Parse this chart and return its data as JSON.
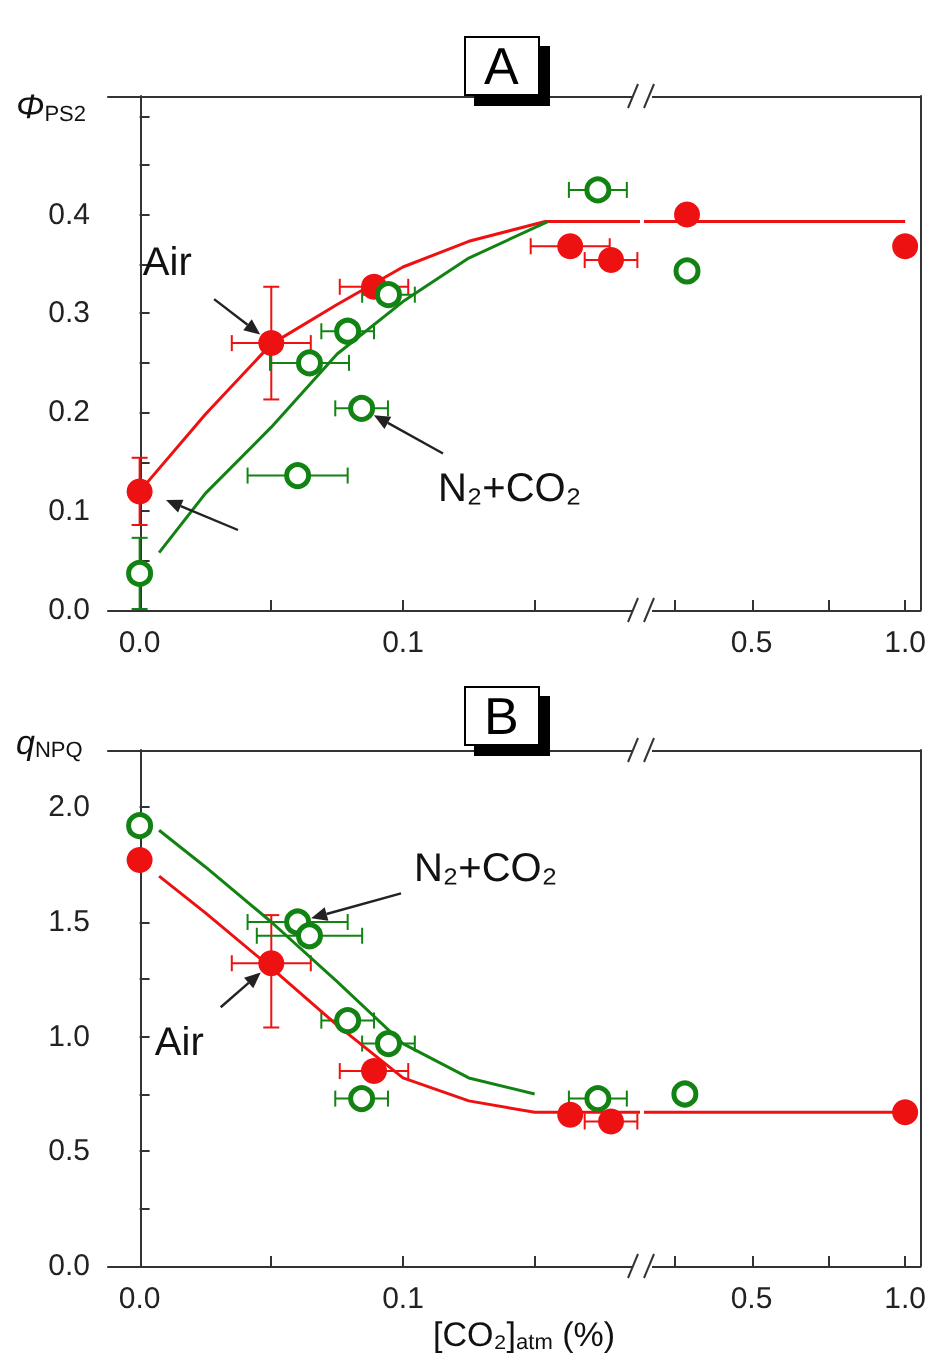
{
  "chart_data": [
    {
      "type": "scatter",
      "title": "A",
      "ylabel": "Φ$_{PS2}$",
      "xlim": [
        -0.012,
        0.19
      ],
      "xticks": [
        {
          "value": 0,
          "label": "0.0"
        },
        {
          "value": 0.05,
          "label": null
        },
        {
          "value": 0.1,
          "label": "0.1"
        },
        {
          "value": 0.15,
          "label": null
        }
      ],
      "ylim": [
        0,
        0.52
      ],
      "yticks": [
        {
          "value": 0,
          "label": "0.0"
        },
        {
          "value": 0.05,
          "label": null
        },
        {
          "value": 0.1,
          "label": "0.1"
        },
        {
          "value": 0.15,
          "label": null
        },
        {
          "value": 0.2,
          "label": "0.2"
        },
        {
          "value": 0.25,
          "label": null
        },
        {
          "value": 0.3,
          "label": "0.3"
        },
        {
          "value": 0.35,
          "label": null
        },
        {
          "value": 0.4,
          "label": "0.4"
        },
        {
          "value": 0.45,
          "label": null
        },
        {
          "value": 0.5,
          "label": null
        }
      ],
      "annotations": [
        {
          "text": "Air",
          "x": 0.05,
          "y": 0.27
        },
        {
          "text": "N₂+CO₂",
          "x": 0.0843,
          "y": 0.204
        }
      ],
      "series": [
        {
          "type": "scatter",
          "color": "#ee1111",
          "marker": "circle",
          "x": [
            0,
            0.05,
            0.089,
            0.1635,
            0.179
          ],
          "values": [
            0.12,
            0.27,
            0.327,
            0.368,
            0.354
          ],
          "errors": [
            0.034,
            0.057,
            null,
            null,
            null
          ],
          "xerrors": [
            null,
            0.015,
            0.013,
            0.015,
            0.01
          ]
        },
        {
          "type": "scatter",
          "color": "#128312",
          "marker": "circle",
          "x": [
            0,
            0.06,
            0.0645,
            0.079,
            0.0843,
            0.0945,
            0.174
          ],
          "values": [
            0.037,
            0.136,
            0.25,
            0.282,
            0.204,
            0.319,
            0.425
          ],
          "errors": [
            0.036,
            null,
            null,
            null,
            null,
            null,
            null
          ],
          "xerrors": [
            null,
            0.019,
            0.015,
            0.01,
            0.01,
            0.01,
            0.011
          ]
        },
        {
          "type": "line",
          "color": "#ee1111",
          "marker": "none",
          "x": [
            0,
            0.025,
            0.05,
            0.075,
            0.1,
            0.125,
            0.154,
            0.19
          ],
          "values": [
            0.12,
            0.198,
            0.269,
            0.309,
            0.347,
            0.373,
            0.393,
            0.393
          ]
        },
        {
          "type": "line",
          "color": "#128312",
          "marker": "none",
          "x": [
            0.0074,
            0.025,
            0.05,
            0.075,
            0.1,
            0.125,
            0.155
          ],
          "values": [
            0.058,
            0.118,
            0.185,
            0.259,
            0.312,
            0.356,
            0.393
          ]
        }
      ]
    },
    {
      "type": "scatter",
      "tick_labels": "x",
      "xlim": [
        0.15,
        1.05
      ],
      "xticks": [
        {
          "value": 0.25,
          "label": null
        },
        0.5,
        {
          "value": 0.75,
          "label": null
        },
        {
          "value": 1,
          "label": "1.0"
        }
      ],
      "ylim": [
        0,
        0.52
      ],
      "series": [
        {
          "type": "scatter",
          "color": "#ee1111",
          "marker": "circle",
          "x": [
            0.29,
            1
          ],
          "values": [
            0.4,
            0.368
          ]
        },
        {
          "type": "scatter",
          "color": "#128312",
          "marker": "circle",
          "x": [
            0.29
          ],
          "values": [
            0.343
          ]
        },
        {
          "type": "line",
          "color": "#ee1111",
          "marker": "none",
          "x": [
            0.15,
            1
          ],
          "values": [
            0.393,
            0.393
          ]
        }
      ]
    },
    {
      "type": "scatter",
      "title": "B",
      "ylabel": "q$_{NPQ}$",
      "xlabel": "[CO₂]$_{atm}$ (%)",
      "xlim": [
        -0.012,
        0.19
      ],
      "xticks": [
        {
          "value": 0,
          "label": "0.0"
        },
        {
          "value": 0.05,
          "label": null
        },
        {
          "value": 0.1,
          "label": "0.1"
        },
        {
          "value": 0.15,
          "label": null
        }
      ],
      "ylim": [
        0,
        2.25
      ],
      "yticks": [
        {
          "value": 0,
          "label": "0.0"
        },
        {
          "value": 0.25,
          "label": null
        },
        {
          "value": 0.5,
          "label": "0.5"
        },
        {
          "value": 0.75,
          "label": null
        },
        {
          "value": 1,
          "label": "1.0"
        },
        {
          "value": 1.25,
          "label": null
        },
        {
          "value": 1.5,
          "label": "1.5"
        },
        {
          "value": 1.75,
          "label": null
        },
        {
          "value": 2,
          "label": "2.0"
        }
      ],
      "annotations": [
        {
          "text": "N₂+CO₂",
          "x": 0.06,
          "y": 1.5
        },
        {
          "text": "Air",
          "x": 0.05,
          "y": 1.32
        }
      ],
      "series": [
        {
          "type": "scatter",
          "color": "#ee1111",
          "marker": "circle",
          "x": [
            0,
            0.05,
            0.089,
            0.1635,
            0.179
          ],
          "values": [
            1.77,
            1.32,
            0.85,
            0.66,
            0.63
          ],
          "errors": [
            null,
            [
              1.04,
              1.53
            ],
            null,
            null,
            null
          ],
          "xerrors": [
            null,
            0.015,
            0.013,
            null,
            0.01
          ]
        },
        {
          "type": "scatter",
          "color": "#128312",
          "marker": "circle",
          "x": [
            0,
            0.06,
            0.0645,
            0.079,
            0.0843,
            0.0945,
            0.174
          ],
          "values": [
            1.92,
            1.5,
            1.44,
            1.07,
            0.73,
            0.97,
            0.73
          ],
          "xerrors": [
            null,
            0.019,
            0.02,
            0.01,
            0.01,
            0.01,
            0.011
          ]
        },
        {
          "type": "line",
          "color": "#ee1111",
          "marker": "none",
          "x": [
            0.0074,
            0.025,
            0.05,
            0.075,
            0.1,
            0.125,
            0.15,
            0.19
          ],
          "values": [
            1.7,
            1.54,
            1.3,
            1.05,
            0.82,
            0.72,
            0.67,
            0.67
          ]
        },
        {
          "type": "line",
          "color": "#128312",
          "marker": "none",
          "x": [
            0.0074,
            0.025,
            0.05,
            0.075,
            0.1,
            0.125,
            0.15
          ],
          "values": [
            1.9,
            1.74,
            1.5,
            1.24,
            0.97,
            0.82,
            0.75
          ]
        }
      ]
    },
    {
      "type": "scatter",
      "tick_labels": "x",
      "xlim": [
        0.15,
        1.05
      ],
      "xticks": [
        {
          "value": 0.25,
          "label": null
        },
        0.5,
        {
          "value": 0.75,
          "label": null
        },
        {
          "value": 1,
          "label": "1.0"
        }
      ],
      "ylim": [
        0,
        2.25
      ],
      "series": [
        {
          "type": "scatter",
          "color": "#ee1111",
          "marker": "circle",
          "x": [
            1
          ],
          "values": [
            0.67
          ]
        },
        {
          "type": "scatter",
          "color": "#128312",
          "marker": "circle",
          "x": [
            0.283
          ],
          "values": [
            0.75
          ]
        },
        {
          "type": "line",
          "color": "#ee1111",
          "marker": "none",
          "x": [
            0.15,
            1
          ],
          "values": [
            0.67,
            0.67
          ]
        }
      ]
    }
  ]
}
